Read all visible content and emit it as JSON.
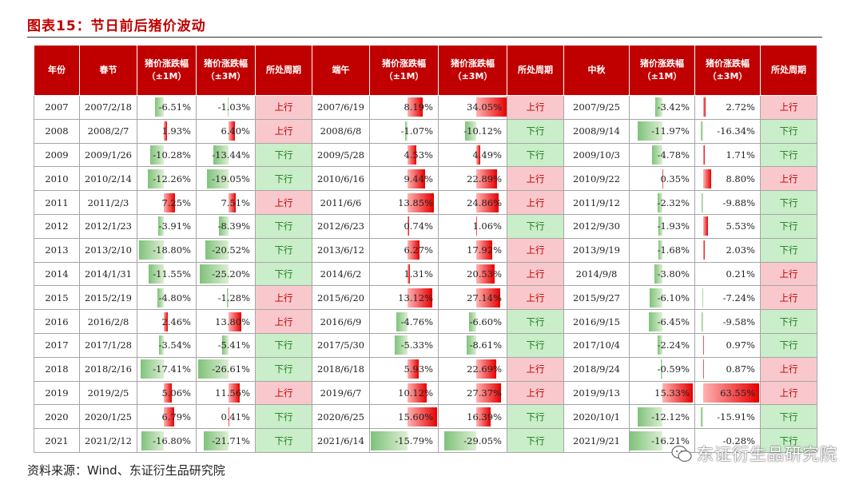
{
  "title": "图表15：节日前后猪价波动",
  "source": "资料来源：Wind、东证衍生品研究院",
  "watermark": "东证衍生品研究院",
  "colors": {
    "header": "#c00000",
    "up_bg": "#f9c8cc",
    "down_bg": "#c9eec9",
    "bar_pos": "#e60000",
    "bar_neg": "#7fc27a"
  },
  "headers": {
    "year": "年份",
    "spring": "春节",
    "h1m_line1": "猪价涨跌幅",
    "h1m_line2": "（±1M）",
    "h3m_line1": "猪价涨跌幅",
    "h3m_line2": "（±3M）",
    "cycle": "所处周期",
    "dragon": "端午",
    "mid": "中秋"
  },
  "rows": [
    {
      "year": "2007",
      "s_date": "2007/2/18",
      "s_1m": "-6.51%",
      "s_3m": "-1.03%",
      "s_cycle": "上行",
      "d_date": "2007/6/19",
      "d_1m": "8.19%",
      "d_3m": "34.05%",
      "d_cycle": "上行",
      "m_date": "2007/9/25",
      "m_1m": "-3.42%",
      "m_3m": "2.72%",
      "m_cycle": "上行"
    },
    {
      "year": "2008",
      "s_date": "2008/2/7",
      "s_1m": "1.93%",
      "s_3m": "6.40%",
      "s_cycle": "上行",
      "d_date": "2008/6/8",
      "d_1m": "-1.07%",
      "d_3m": "-10.12%",
      "d_cycle": "下行",
      "m_date": "2008/9/14",
      "m_1m": "-11.97%",
      "m_3m": "-16.34%",
      "m_cycle": "下行"
    },
    {
      "year": "2009",
      "s_date": "2009/1/26",
      "s_1m": "-10.28%",
      "s_3m": "-13.44%",
      "s_cycle": "下行",
      "d_date": "2009/5/28",
      "d_1m": "4.53%",
      "d_3m": "4.49%",
      "d_cycle": "下行",
      "m_date": "2009/10/3",
      "m_1m": "-4.78%",
      "m_3m": "1.71%",
      "m_cycle": "下行"
    },
    {
      "year": "2010",
      "s_date": "2010/2/14",
      "s_1m": "-12.26%",
      "s_3m": "-19.05%",
      "s_cycle": "下行",
      "d_date": "2010/6/16",
      "d_1m": "9.44%",
      "d_3m": "22.89%",
      "d_cycle": "上行",
      "m_date": "2010/9/22",
      "m_1m": "0.35%",
      "m_3m": "8.80%",
      "m_cycle": "上行"
    },
    {
      "year": "2011",
      "s_date": "2011/2/3",
      "s_1m": "7.25%",
      "s_3m": "7.51%",
      "s_cycle": "上行",
      "d_date": "2011/6/6",
      "d_1m": "13.85%",
      "d_3m": "24.86%",
      "d_cycle": "上行",
      "m_date": "2011/9/12",
      "m_1m": "-2.32%",
      "m_3m": "-9.88%",
      "m_cycle": "下行"
    },
    {
      "year": "2012",
      "s_date": "2012/1/23",
      "s_1m": "-3.91%",
      "s_3m": "-8.39%",
      "s_cycle": "下行",
      "d_date": "2012/6/23",
      "d_1m": "0.74%",
      "d_3m": "1.06%",
      "d_cycle": "下行",
      "m_date": "2012/9/30",
      "m_1m": "-1.93%",
      "m_3m": "5.53%",
      "m_cycle": "下行"
    },
    {
      "year": "2013",
      "s_date": "2013/2/10",
      "s_1m": "-18.80%",
      "s_3m": "-20.52%",
      "s_cycle": "下行",
      "d_date": "2013/6/12",
      "d_1m": "6.27%",
      "d_3m": "17.92%",
      "d_cycle": "上行",
      "m_date": "2013/9/19",
      "m_1m": "-1.68%",
      "m_3m": "2.03%",
      "m_cycle": "下行"
    },
    {
      "year": "2014",
      "s_date": "2014/1/31",
      "s_1m": "-11.55%",
      "s_3m": "-25.20%",
      "s_cycle": "下行",
      "d_date": "2014/6/2",
      "d_1m": "1.31%",
      "d_3m": "20.53%",
      "d_cycle": "上行",
      "m_date": "2014/9/8",
      "m_1m": "-3.80%",
      "m_3m": "0.21%",
      "m_cycle": "上行"
    },
    {
      "year": "2015",
      "s_date": "2015/2/19",
      "s_1m": "-4.80%",
      "s_3m": "-1.28%",
      "s_cycle": "上行",
      "d_date": "2015/6/20",
      "d_1m": "13.12%",
      "d_3m": "27.14%",
      "d_cycle": "上行",
      "m_date": "2015/9/27",
      "m_1m": "-6.10%",
      "m_3m": "-7.24%",
      "m_cycle": "上行"
    },
    {
      "year": "2016",
      "s_date": "2016/2/8",
      "s_1m": "2.46%",
      "s_3m": "13.80%",
      "s_cycle": "上行",
      "d_date": "2016/6/9",
      "d_1m": "-4.76%",
      "d_3m": "-6.60%",
      "d_cycle": "下行",
      "m_date": "2016/9/15",
      "m_1m": "-6.45%",
      "m_3m": "-9.58%",
      "m_cycle": "下行"
    },
    {
      "year": "2017",
      "s_date": "2017/1/28",
      "s_1m": "-3.54%",
      "s_3m": "-5.41%",
      "s_cycle": "下行",
      "d_date": "2017/5/30",
      "d_1m": "-5.33%",
      "d_3m": "-8.61%",
      "d_cycle": "下行",
      "m_date": "2017/10/4",
      "m_1m": "-2.24%",
      "m_3m": "0.97%",
      "m_cycle": "下行"
    },
    {
      "year": "2018",
      "s_date": "2018/2/16",
      "s_1m": "-17.41%",
      "s_3m": "-26.61%",
      "s_cycle": "下行",
      "d_date": "2018/6/18",
      "d_1m": "5.93%",
      "d_3m": "22.69%",
      "d_cycle": "上行",
      "m_date": "2018/9/24",
      "m_1m": "-0.59%",
      "m_3m": "0.87%",
      "m_cycle": "上行"
    },
    {
      "year": "2019",
      "s_date": "2019/2/5",
      "s_1m": "5.06%",
      "s_3m": "11.56%",
      "s_cycle": "上行",
      "d_date": "2019/6/7",
      "d_1m": "10.12%",
      "d_3m": "27.37%",
      "d_cycle": "上行",
      "m_date": "2019/9/13",
      "m_1m": "15.33%",
      "m_3m": "63.55%",
      "m_cycle": "上行"
    },
    {
      "year": "2020",
      "s_date": "2020/1/25",
      "s_1m": "6.79%",
      "s_3m": "0.41%",
      "s_cycle": "下行",
      "d_date": "2020/6/25",
      "d_1m": "15.60%",
      "d_3m": "16.39%",
      "d_cycle": "下行",
      "m_date": "2020/10/1",
      "m_1m": "-12.12%",
      "m_3m": "-15.91%",
      "m_cycle": "下行"
    },
    {
      "year": "2021",
      "s_date": "2021/2/12",
      "s_1m": "-16.80%",
      "s_3m": "-21.71%",
      "s_cycle": "下行",
      "d_date": "2021/6/14",
      "d_1m": "-15.79%",
      "d_3m": "-29.05%",
      "d_cycle": "下行",
      "m_date": "2021/9/21",
      "m_1m": "-16.21%",
      "m_3m": "-0.28%",
      "m_cycle": "下行"
    }
  ]
}
